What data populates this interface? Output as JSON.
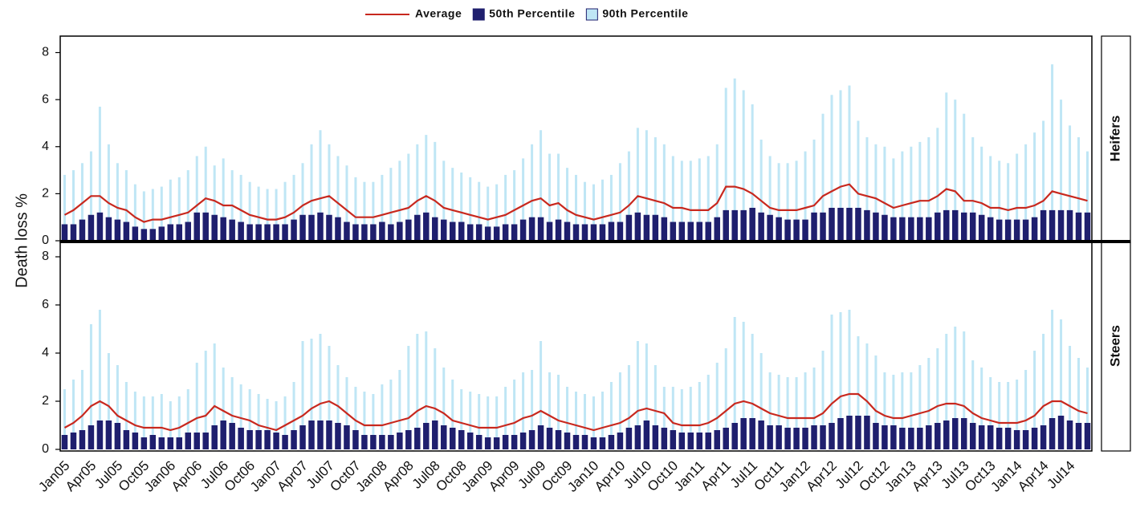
{
  "chart_data": [
    {
      "type": "bar",
      "panel_label": "Heifers",
      "y_label": "Death loss %",
      "ylim": [
        0,
        8.7
      ],
      "yticks": [
        0,
        2,
        4,
        6,
        8
      ],
      "series": [
        {
          "name": "Average",
          "mark": "line",
          "color": "#c8281e",
          "values": [
            1.1,
            1.3,
            1.6,
            1.9,
            1.9,
            1.6,
            1.4,
            1.3,
            1.0,
            0.8,
            0.9,
            0.9,
            1.0,
            1.1,
            1.2,
            1.5,
            1.8,
            1.7,
            1.5,
            1.5,
            1.3,
            1.1,
            1.0,
            0.9,
            0.9,
            1.0,
            1.2,
            1.5,
            1.7,
            1.8,
            1.9,
            1.6,
            1.3,
            1.0,
            1.0,
            1.0,
            1.1,
            1.2,
            1.3,
            1.4,
            1.7,
            1.9,
            1.7,
            1.4,
            1.3,
            1.2,
            1.1,
            1.0,
            0.9,
            1.0,
            1.1,
            1.3,
            1.5,
            1.7,
            1.8,
            1.5,
            1.6,
            1.3,
            1.1,
            1.0,
            0.9,
            1.0,
            1.1,
            1.2,
            1.5,
            1.9,
            1.8,
            1.7,
            1.6,
            1.4,
            1.4,
            1.3,
            1.3,
            1.3,
            1.6,
            2.3,
            2.3,
            2.2,
            2.0,
            1.7,
            1.4,
            1.3,
            1.3,
            1.3,
            1.4,
            1.5,
            1.9,
            2.1,
            2.3,
            2.4,
            2.0,
            1.9,
            1.8,
            1.6,
            1.4,
            1.5,
            1.6,
            1.7,
            1.7,
            1.9,
            2.2,
            2.1,
            1.7,
            1.7,
            1.6,
            1.4,
            1.4,
            1.3,
            1.4,
            1.4,
            1.5,
            1.7,
            2.1,
            2.0,
            1.9,
            1.8,
            1.7
          ]
        },
        {
          "name": "50th Percentile",
          "mark": "bar",
          "color": "#1f1f6e",
          "values": [
            0.7,
            0.7,
            0.9,
            1.1,
            1.2,
            1.0,
            0.9,
            0.8,
            0.6,
            0.5,
            0.5,
            0.6,
            0.7,
            0.7,
            0.8,
            1.2,
            1.2,
            1.1,
            1.0,
            0.9,
            0.8,
            0.7,
            0.7,
            0.7,
            0.7,
            0.7,
            0.9,
            1.1,
            1.1,
            1.2,
            1.1,
            1.0,
            0.8,
            0.7,
            0.7,
            0.7,
            0.8,
            0.7,
            0.8,
            0.9,
            1.1,
            1.2,
            1.0,
            0.9,
            0.8,
            0.8,
            0.7,
            0.7,
            0.6,
            0.6,
            0.7,
            0.7,
            0.9,
            1.0,
            1.0,
            0.8,
            0.9,
            0.8,
            0.7,
            0.7,
            0.7,
            0.7,
            0.8,
            0.8,
            1.1,
            1.2,
            1.1,
            1.1,
            1.0,
            0.8,
            0.8,
            0.8,
            0.8,
            0.8,
            1.0,
            1.3,
            1.3,
            1.3,
            1.4,
            1.2,
            1.1,
            1.0,
            0.9,
            0.9,
            0.9,
            1.2,
            1.2,
            1.4,
            1.4,
            1.4,
            1.4,
            1.3,
            1.2,
            1.1,
            1.0,
            1.0,
            1.0,
            1.0,
            1.0,
            1.2,
            1.3,
            1.3,
            1.2,
            1.2,
            1.1,
            1.0,
            0.9,
            0.9,
            0.9,
            0.9,
            1.0,
            1.3,
            1.3,
            1.3,
            1.3,
            1.2,
            1.2
          ]
        },
        {
          "name": "90th Percentile",
          "mark": "bar",
          "color": "#bfe6f5",
          "values": [
            2.8,
            3.0,
            3.3,
            3.8,
            5.7,
            4.1,
            3.3,
            3.0,
            2.4,
            2.1,
            2.2,
            2.3,
            2.6,
            2.7,
            3.0,
            3.6,
            4.0,
            3.2,
            3.5,
            3.0,
            2.8,
            2.5,
            2.3,
            2.2,
            2.2,
            2.5,
            2.8,
            3.3,
            4.1,
            4.7,
            4.1,
            3.6,
            3.2,
            2.7,
            2.5,
            2.5,
            2.8,
            3.1,
            3.4,
            3.7,
            4.1,
            4.5,
            4.2,
            3.4,
            3.1,
            2.9,
            2.7,
            2.5,
            2.3,
            2.4,
            2.8,
            3.0,
            3.5,
            4.1,
            4.7,
            3.7,
            3.7,
            3.1,
            2.8,
            2.5,
            2.4,
            2.6,
            2.8,
            3.3,
            3.8,
            4.8,
            4.7,
            4.4,
            4.1,
            3.6,
            3.4,
            3.4,
            3.5,
            3.6,
            4.1,
            6.5,
            6.9,
            6.4,
            5.8,
            4.3,
            3.6,
            3.3,
            3.3,
            3.4,
            3.8,
            4.3,
            5.4,
            6.2,
            6.4,
            6.6,
            5.1,
            4.4,
            4.1,
            4.0,
            3.5,
            3.8,
            4.0,
            4.2,
            4.4,
            4.8,
            6.3,
            6.0,
            5.4,
            4.4,
            4.0,
            3.6,
            3.4,
            3.3,
            3.7,
            4.1,
            4.6,
            5.1,
            7.5,
            6.0,
            4.9,
            4.4,
            3.8
          ]
        }
      ]
    },
    {
      "type": "bar",
      "panel_label": "Steers",
      "ylim": [
        0,
        8.6
      ],
      "yticks": [
        0,
        2,
        4,
        6,
        8
      ],
      "categories": [
        "Jan05",
        null,
        null,
        "Apr05",
        null,
        null,
        "Jul05",
        null,
        null,
        "Oct05",
        null,
        null,
        "Jan06",
        null,
        null,
        "Apr06",
        null,
        null,
        "Jul06",
        null,
        null,
        "Oct06",
        null,
        null,
        "Jan07",
        null,
        null,
        "Apr07",
        null,
        null,
        "Jul07",
        null,
        null,
        "Oct07",
        null,
        null,
        "Jan08",
        null,
        null,
        "Apr08",
        null,
        null,
        "Jul08",
        null,
        null,
        "Oct08",
        null,
        null,
        "Jan09",
        null,
        null,
        "Apr09",
        null,
        null,
        "Jul09",
        null,
        null,
        "Oct09",
        null,
        null,
        "Jan10",
        null,
        null,
        "Apr10",
        null,
        null,
        "Jul10",
        null,
        null,
        "Oct10",
        null,
        null,
        "Jan11",
        null,
        null,
        "Apr11",
        null,
        null,
        "Jul11",
        null,
        null,
        "Oct11",
        null,
        null,
        "Jan12",
        null,
        null,
        "Apr12",
        null,
        null,
        "Jul12",
        null,
        null,
        "Oct12",
        null,
        null,
        "Jan13",
        null,
        null,
        "Apr13",
        null,
        null,
        "Jul13",
        null,
        null,
        "Oct13",
        null,
        null,
        "Jan14",
        null,
        null,
        "Apr14",
        null,
        null,
        "Jul14",
        null,
        null
      ],
      "series": [
        {
          "mark": "line",
          "color": "#c8281e",
          "values": [
            0.9,
            1.1,
            1.4,
            1.8,
            2.0,
            1.8,
            1.4,
            1.2,
            1.0,
            0.9,
            0.9,
            0.9,
            0.8,
            0.9,
            1.1,
            1.3,
            1.4,
            1.8,
            1.6,
            1.4,
            1.3,
            1.2,
            1.0,
            0.9,
            0.8,
            1.0,
            1.2,
            1.4,
            1.7,
            1.9,
            2.0,
            1.8,
            1.5,
            1.2,
            1.0,
            1.0,
            1.0,
            1.1,
            1.2,
            1.3,
            1.6,
            1.8,
            1.7,
            1.5,
            1.2,
            1.1,
            1.0,
            0.9,
            0.9,
            0.9,
            1.0,
            1.1,
            1.3,
            1.4,
            1.6,
            1.4,
            1.2,
            1.1,
            1.0,
            0.9,
            0.8,
            0.9,
            1.0,
            1.1,
            1.3,
            1.6,
            1.7,
            1.6,
            1.5,
            1.1,
            1.0,
            1.0,
            1.0,
            1.1,
            1.3,
            1.6,
            1.9,
            2.0,
            1.9,
            1.7,
            1.5,
            1.4,
            1.3,
            1.3,
            1.3,
            1.3,
            1.5,
            1.9,
            2.2,
            2.3,
            2.3,
            2.0,
            1.6,
            1.4,
            1.3,
            1.3,
            1.4,
            1.5,
            1.6,
            1.8,
            1.9,
            1.9,
            1.8,
            1.5,
            1.3,
            1.2,
            1.1,
            1.1,
            1.1,
            1.2,
            1.4,
            1.8,
            2.0,
            2.0,
            1.8,
            1.6,
            1.5
          ]
        },
        {
          "mark": "bar",
          "color": "#1f1f6e",
          "values": [
            0.6,
            0.7,
            0.8,
            1.0,
            1.2,
            1.2,
            1.1,
            0.8,
            0.7,
            0.5,
            0.6,
            0.5,
            0.5,
            0.5,
            0.7,
            0.7,
            0.7,
            1.0,
            1.2,
            1.1,
            0.9,
            0.8,
            0.8,
            0.8,
            0.7,
            0.6,
            0.8,
            1.0,
            1.2,
            1.2,
            1.2,
            1.1,
            1.0,
            0.8,
            0.6,
            0.6,
            0.6,
            0.6,
            0.7,
            0.8,
            0.9,
            1.1,
            1.2,
            1.0,
            0.9,
            0.8,
            0.7,
            0.6,
            0.5,
            0.5,
            0.6,
            0.6,
            0.7,
            0.8,
            1.0,
            0.9,
            0.8,
            0.7,
            0.6,
            0.6,
            0.5,
            0.5,
            0.6,
            0.7,
            0.9,
            1.0,
            1.2,
            1.0,
            0.9,
            0.8,
            0.7,
            0.7,
            0.7,
            0.7,
            0.8,
            0.9,
            1.1,
            1.3,
            1.3,
            1.2,
            1.0,
            1.0,
            0.9,
            0.9,
            0.9,
            1.0,
            1.0,
            1.1,
            1.3,
            1.4,
            1.4,
            1.4,
            1.1,
            1.0,
            1.0,
            0.9,
            0.9,
            0.9,
            1.0,
            1.1,
            1.2,
            1.3,
            1.3,
            1.1,
            1.0,
            1.0,
            0.9,
            0.9,
            0.8,
            0.8,
            0.9,
            1.0,
            1.3,
            1.4,
            1.2,
            1.1,
            1.1
          ]
        },
        {
          "mark": "bar",
          "color": "#bfe6f5",
          "values": [
            2.5,
            2.9,
            3.3,
            5.2,
            5.8,
            4.0,
            3.5,
            2.8,
            2.4,
            2.2,
            2.2,
            2.3,
            2.0,
            2.2,
            2.5,
            3.6,
            4.1,
            4.4,
            3.4,
            3.0,
            2.7,
            2.5,
            2.3,
            2.1,
            2.0,
            2.2,
            2.8,
            4.5,
            4.6,
            4.8,
            4.3,
            3.5,
            3.0,
            2.6,
            2.4,
            2.3,
            2.7,
            2.9,
            3.3,
            4.3,
            4.8,
            4.9,
            4.2,
            3.4,
            2.9,
            2.5,
            2.4,
            2.3,
            2.2,
            2.2,
            2.6,
            2.9,
            3.2,
            3.3,
            4.5,
            3.2,
            3.1,
            2.6,
            2.4,
            2.3,
            2.2,
            2.4,
            2.8,
            3.2,
            3.5,
            4.5,
            4.4,
            3.5,
            2.6,
            2.6,
            2.5,
            2.6,
            2.8,
            3.1,
            3.6,
            4.2,
            5.5,
            5.3,
            4.8,
            4.0,
            3.2,
            3.1,
            3.0,
            3.0,
            3.2,
            3.4,
            4.1,
            5.6,
            5.7,
            5.8,
            4.7,
            4.4,
            3.9,
            3.2,
            3.1,
            3.2,
            3.2,
            3.5,
            3.8,
            4.2,
            4.8,
            5.1,
            4.9,
            3.7,
            3.4,
            3.0,
            2.8,
            2.8,
            2.9,
            3.3,
            4.1,
            4.8,
            5.8,
            5.4,
            4.3,
            3.8,
            3.4
          ]
        }
      ]
    }
  ]
}
